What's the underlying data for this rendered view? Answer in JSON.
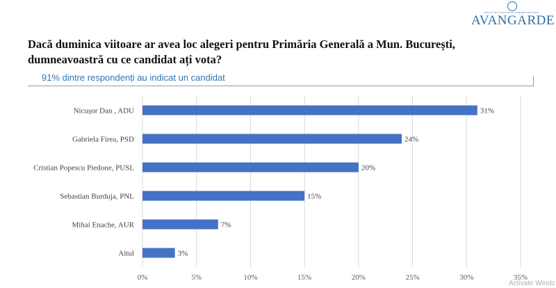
{
  "brand": {
    "small_text": "GRUPUL DE STUDII SOCIO-COMPORTAMENTALE",
    "name": "AVANGARDE"
  },
  "question": "Dacă duminica viitoare ar avea loc alegeri pentru Primăria Generală a Mun. București, dumneavoastră cu ce candidat ați vota?",
  "subtitle": "91% dintre respondenți au indicat un candidat",
  "watermark": "Activate Windo",
  "chart_data": {
    "type": "bar",
    "orientation": "horizontal",
    "categories": [
      "Nicușor Dan , ADU",
      "Gabriela Firea, PSD",
      "Cristian Popescu Piedone, PUSL",
      "Sebastian Burduja, PNL",
      "Mihai Enache, AUR",
      "Altul"
    ],
    "values": [
      31,
      24,
      20,
      15,
      7,
      3
    ],
    "value_labels": [
      "31%",
      "24%",
      "20%",
      "15%",
      "7%",
      "3%"
    ],
    "xlim": [
      0,
      35
    ],
    "x_ticks": [
      0,
      5,
      10,
      15,
      20,
      25,
      30,
      35
    ],
    "x_tick_labels": [
      "0%",
      "5%",
      "10%",
      "15%",
      "20%",
      "25%",
      "30%",
      "35%"
    ],
    "grid": true,
    "bar_color": "#4472c4"
  }
}
